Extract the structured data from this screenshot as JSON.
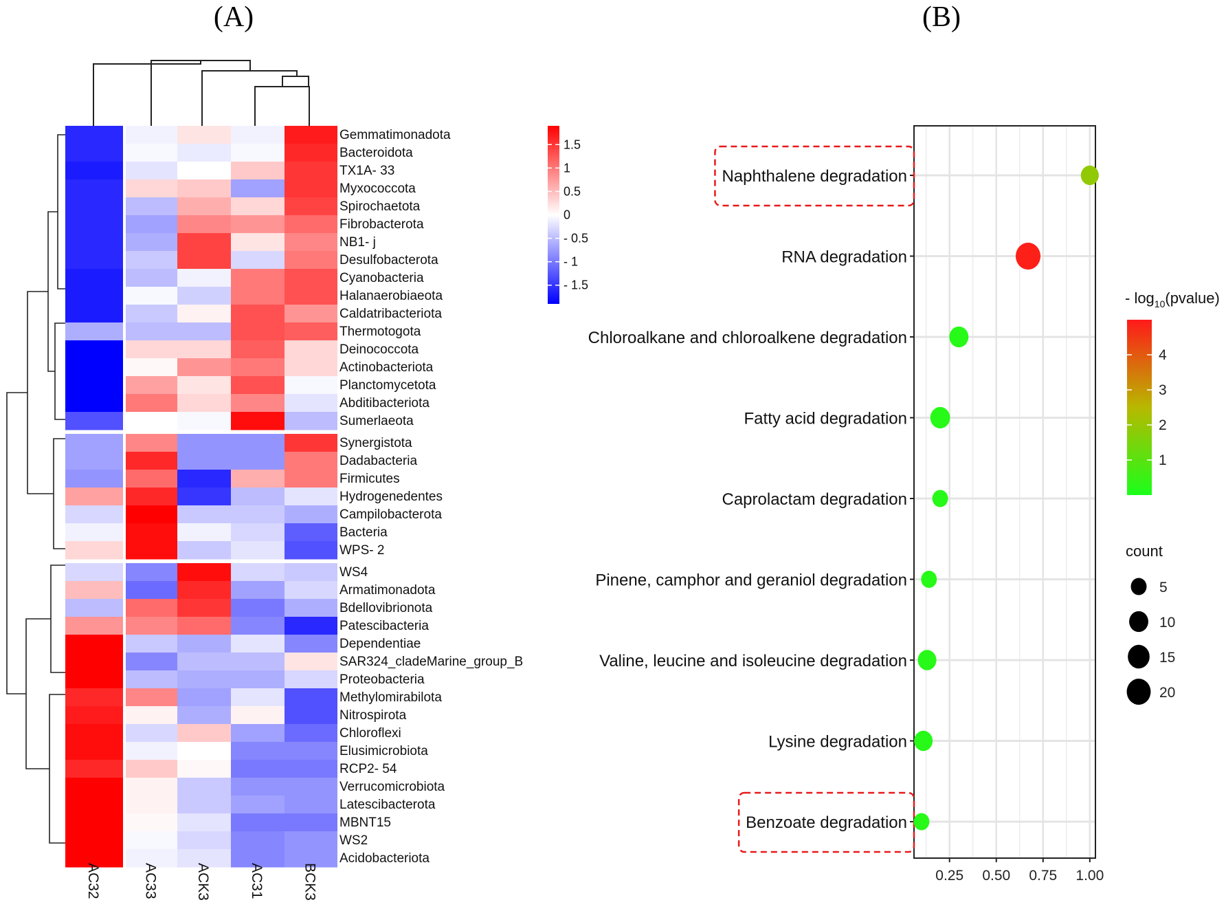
{
  "chart_data": [
    {
      "type": "heatmap",
      "panel_label": "(A)",
      "columns": [
        "AC32",
        "AC33",
        "ACK3",
        "AC31",
        "BCK3"
      ],
      "rows": [
        "Gemmatimonadota",
        "Bacteroidota",
        "TX1A- 33",
        "Myxococcota",
        "Spirochaetota",
        "Fibrobacterota",
        "NB1- j",
        "Desulfobacterota",
        "Cyanobacteria",
        "Halanaerobiaeota",
        "Caldatribacteriota",
        "Thermotogota",
        "Deinococcota",
        "Actinobacteriota",
        "Planctomycetota",
        "Abditibacteriota",
        "Sumerlaeota",
        "Synergistota",
        "Dadabacteria",
        "Firmicutes",
        "Hydrogenedentes",
        "Campilobacterota",
        "Bacteria",
        "WPS- 2",
        "WS4",
        "Armatimonadota",
        "Bdellovibrionota",
        "Patescibacteria",
        "Dependentiae",
        "SAR324_cladeMarine_group_B",
        "Proteobacteria",
        "Methylomirabilota",
        "Nitrospirota",
        "Chloroflexi",
        "Elusimicrobiota",
        "RCP2- 54",
        "Verrucomicrobiota",
        "Latescibacterota",
        "MBNT15",
        "WS2",
        "Acidobacteriota"
      ],
      "values": [
        [
          -1.6,
          -0.1,
          0.2,
          -0.1,
          1.7
        ],
        [
          -1.6,
          -0.05,
          -0.15,
          -0.05,
          1.6
        ],
        [
          -1.7,
          -0.2,
          0.0,
          0.4,
          1.5
        ],
        [
          -1.6,
          0.3,
          0.4,
          -0.7,
          1.5
        ],
        [
          -1.6,
          -0.5,
          0.6,
          0.3,
          1.4
        ],
        [
          -1.6,
          -0.7,
          0.9,
          0.8,
          1.1
        ],
        [
          -1.6,
          -0.6,
          1.4,
          0.2,
          0.9
        ],
        [
          -1.6,
          -0.4,
          1.4,
          -0.3,
          1.0
        ],
        [
          -1.7,
          -0.5,
          -0.1,
          1.0,
          1.3
        ],
        [
          -1.7,
          -0.05,
          -0.35,
          1.0,
          1.3
        ],
        [
          -1.7,
          -0.4,
          0.1,
          1.3,
          0.8
        ],
        [
          -0.6,
          -0.5,
          -0.5,
          1.3,
          1.2
        ],
        [
          -1.9,
          0.3,
          0.3,
          1.2,
          0.3
        ],
        [
          -1.9,
          0.05,
          0.8,
          1.0,
          0.3
        ],
        [
          -1.9,
          0.7,
          0.2,
          1.3,
          -0.05
        ],
        [
          -1.9,
          1.0,
          0.3,
          0.9,
          -0.2
        ],
        [
          -1.3,
          0.0,
          -0.05,
          1.8,
          -0.5
        ],
        [
          -0.7,
          0.9,
          -0.8,
          -0.8,
          1.5
        ],
        [
          -0.7,
          1.6,
          -0.8,
          -0.8,
          1.0
        ],
        [
          -0.8,
          1.1,
          -1.6,
          0.6,
          1.0
        ],
        [
          0.7,
          1.6,
          -1.5,
          -0.5,
          -0.2
        ],
        [
          -0.3,
          1.9,
          -0.4,
          -0.4,
          -0.6
        ],
        [
          -0.1,
          1.8,
          -0.1,
          -0.3,
          -1.2
        ],
        [
          0.3,
          1.8,
          -0.4,
          -0.2,
          -1.3
        ],
        [
          -0.3,
          -0.9,
          1.8,
          -0.3,
          -0.4
        ],
        [
          0.5,
          -1.1,
          1.6,
          -0.7,
          -0.3
        ],
        [
          -0.5,
          1.1,
          1.5,
          -1.0,
          -0.6
        ],
        [
          0.8,
          0.9,
          1.1,
          -0.9,
          -1.6
        ],
        [
          1.9,
          -0.4,
          -0.6,
          -0.2,
          -0.9
        ],
        [
          1.9,
          -0.9,
          -0.5,
          -0.5,
          0.2
        ],
        [
          1.9,
          -0.5,
          -0.6,
          -0.6,
          -0.3
        ],
        [
          1.6,
          0.9,
          -0.7,
          -0.2,
          -1.3
        ],
        [
          1.7,
          0.1,
          -0.6,
          0.1,
          -1.3
        ],
        [
          1.8,
          -0.3,
          0.4,
          -0.7,
          -1.1
        ],
        [
          1.8,
          -0.1,
          0.0,
          -0.9,
          -0.9
        ],
        [
          1.6,
          0.4,
          0.05,
          -1.0,
          -1.0
        ],
        [
          1.9,
          0.1,
          -0.4,
          -0.8,
          -0.8
        ],
        [
          1.9,
          0.1,
          -0.4,
          -0.7,
          -0.8
        ],
        [
          1.9,
          0.05,
          -0.2,
          -1.0,
          -1.0
        ],
        [
          1.9,
          -0.05,
          -0.3,
          -0.9,
          -0.8
        ],
        [
          1.9,
          -0.1,
          -0.2,
          -0.9,
          -0.8
        ]
      ],
      "row_groups": [
        17,
        7,
        17
      ],
      "color_scale": {
        "min": -1.9,
        "max": 1.9,
        "low": "#0000ff",
        "mid": "#ffffff",
        "high": "#ff0000",
        "ticks": [
          1.5,
          1,
          0.5,
          0,
          -0.5,
          -1,
          -1.5
        ],
        "tick_labels": [
          "1.5",
          "1",
          "0.5",
          "0",
          "- 0.5",
          "- 1",
          "- 1.5"
        ]
      }
    },
    {
      "type": "scatter",
      "panel_label": "(B)",
      "categories": [
        "Naphthalene degradation",
        "RNA degradation",
        "Chloroalkane and chloroalkene degradation",
        "Fatty acid degradation",
        "Caprolactam degradation",
        "Pinene, camphor and geraniol degradation",
        "Valine, leucine and isoleucine degradation",
        "Lysine degradation",
        "Benzoate degradation"
      ],
      "x": [
        1.0,
        0.67,
        0.3,
        0.2,
        0.2,
        0.14,
        0.13,
        0.11,
        0.1
      ],
      "count": [
        8,
        22,
        10,
        11,
        5,
        5,
        9,
        9,
        5
      ],
      "neg_log10_pvalue": [
        1.9,
        4.9,
        0.2,
        0.2,
        0.2,
        0.2,
        0.2,
        0.2,
        0.2
      ],
      "xlim": [
        0.06,
        1.03
      ],
      "xticks": [
        0.25,
        0.5,
        0.75,
        1.0
      ],
      "xtick_labels": [
        "0.25",
        "0.50",
        "0.75",
        "1.00"
      ],
      "highlighted": [
        "Naphthalene degradation",
        "Benzoate degradation"
      ],
      "color_legend": {
        "title": "- log",
        "subscript": "10",
        "title_suffix": "(pvalue)",
        "min": 0,
        "max": 5,
        "ticks": [
          1,
          2,
          3,
          4
        ],
        "tick_labels": [
          "1",
          "2",
          "3",
          "4"
        ],
        "low": "#1aff1a",
        "mid": "#b8b800",
        "high": "#ff1a1a"
      },
      "size_legend": {
        "title": "count",
        "values": [
          5,
          10,
          15,
          20
        ],
        "labels": [
          "5",
          "10",
          "15",
          "20"
        ]
      },
      "colors": {
        "grid": "#e4e4e4",
        "highlight": "#e8191a"
      }
    }
  ]
}
